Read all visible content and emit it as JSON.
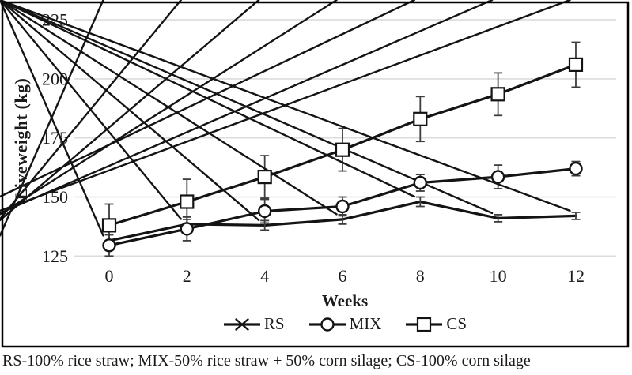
{
  "chart_data": {
    "type": "line",
    "title": "",
    "xlabel": "Weeks",
    "ylabel": "Liveweight (kg)",
    "x": [
      0,
      2,
      4,
      6,
      8,
      10,
      12
    ],
    "yticks": [
      125,
      150,
      175,
      200,
      225
    ],
    "ylim": [
      125,
      225
    ],
    "grid": "horizontal-only",
    "legend_position": "bottom",
    "series": [
      {
        "name": "RS",
        "marker": "x",
        "values": [
          131.5,
          138.5,
          138,
          140.5,
          148,
          141,
          142
        ],
        "errors": [
          2.5,
          2,
          2,
          2,
          2,
          1.5,
          1.5
        ]
      },
      {
        "name": "MIX",
        "marker": "circle",
        "values": [
          129.5,
          136.5,
          144,
          146,
          156,
          158.5,
          162
        ],
        "errors": [
          4.5,
          5,
          5,
          4,
          3.5,
          5,
          3
        ]
      },
      {
        "name": "CS",
        "marker": "square",
        "values": [
          138,
          148,
          158.5,
          170,
          183,
          193.5,
          206
        ],
        "errors": [
          9,
          9.5,
          9,
          9,
          9.5,
          9,
          9.5
        ]
      }
    ]
  },
  "caption": "RS-100% rice straw; MIX-50% rice straw + 50% corn silage; CS-100% corn silage",
  "colors": {
    "line": "#141414",
    "grid": "#dcdcdc",
    "error_bar": "#3d3d3d",
    "frame": "#000000",
    "text": "#1a1a1a",
    "marker_fill": "#ffffff"
  }
}
